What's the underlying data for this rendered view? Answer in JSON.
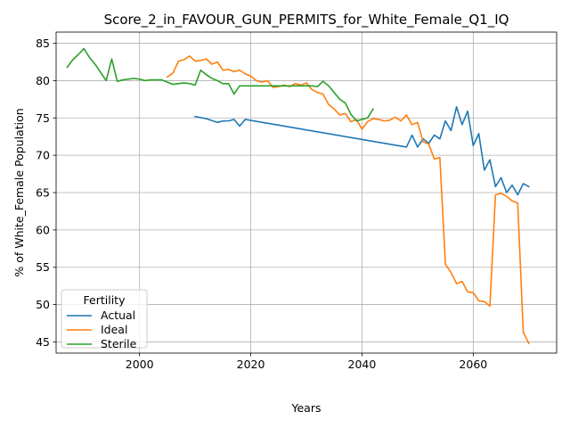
{
  "chart_data": {
    "type": "line",
    "title": "Score_2_in_FAVOUR_GUN_PERMITS_for_White_Female_Q1_IQ",
    "xlabel": "Years",
    "ylabel": "% of White_Female Population",
    "xlim": [
      1985,
      2075
    ],
    "ylim": [
      43.5,
      86.5
    ],
    "xticks": [
      2000,
      2020,
      2040,
      2060
    ],
    "yticks": [
      45,
      50,
      55,
      60,
      65,
      70,
      75,
      80,
      85
    ],
    "grid": true,
    "legend": {
      "title": "Fertility",
      "placement": "lower-left"
    },
    "series": [
      {
        "name": "Actual",
        "color": "#1f77b4",
        "points": [
          [
            2010,
            75.2
          ],
          [
            2012,
            74.9
          ],
          [
            2014,
            74.4
          ],
          [
            2015,
            74.6
          ],
          [
            2016,
            74.6
          ],
          [
            2017,
            74.8
          ],
          [
            2018,
            73.9
          ],
          [
            2019,
            74.8
          ],
          [
            2048,
            71.1
          ],
          [
            2049,
            72.7
          ],
          [
            2050,
            71.1
          ],
          [
            2051,
            72.2
          ],
          [
            2052,
            71.6
          ],
          [
            2053,
            72.7
          ],
          [
            2054,
            72.2
          ],
          [
            2055,
            74.6
          ],
          [
            2056,
            73.3
          ],
          [
            2057,
            76.5
          ],
          [
            2058,
            74.1
          ],
          [
            2059,
            75.9
          ],
          [
            2060,
            71.3
          ],
          [
            2061,
            72.9
          ],
          [
            2062,
            68.0
          ],
          [
            2063,
            69.4
          ],
          [
            2064,
            65.8
          ],
          [
            2065,
            67.0
          ],
          [
            2066,
            65.0
          ],
          [
            2067,
            66.0
          ],
          [
            2068,
            64.7
          ],
          [
            2069,
            66.2
          ],
          [
            2070,
            65.8
          ]
        ]
      },
      {
        "name": "Ideal",
        "color": "#ff7f0e",
        "points": [
          [
            2005,
            80.5
          ],
          [
            2006,
            81.0
          ],
          [
            2007,
            82.6
          ],
          [
            2008,
            82.8
          ],
          [
            2009,
            83.3
          ],
          [
            2010,
            82.6
          ],
          [
            2011,
            82.7
          ],
          [
            2012,
            82.9
          ],
          [
            2013,
            82.2
          ],
          [
            2014,
            82.5
          ],
          [
            2015,
            81.4
          ],
          [
            2016,
            81.5
          ],
          [
            2017,
            81.2
          ],
          [
            2018,
            81.4
          ],
          [
            2019,
            80.9
          ],
          [
            2020,
            80.6
          ],
          [
            2021,
            80.0
          ],
          [
            2022,
            79.8
          ],
          [
            2023,
            80.0
          ],
          [
            2024,
            79.1
          ],
          [
            2025,
            79.2
          ],
          [
            2026,
            79.4
          ],
          [
            2027,
            79.2
          ],
          [
            2028,
            79.6
          ],
          [
            2029,
            79.4
          ],
          [
            2030,
            79.7
          ],
          [
            2031,
            78.8
          ],
          [
            2032,
            78.4
          ],
          [
            2033,
            78.2
          ],
          [
            2034,
            76.8
          ],
          [
            2035,
            76.2
          ],
          [
            2036,
            75.4
          ],
          [
            2037,
            75.6
          ],
          [
            2038,
            74.5
          ],
          [
            2039,
            74.8
          ],
          [
            2040,
            73.5
          ],
          [
            2041,
            74.5
          ],
          [
            2042,
            74.9
          ],
          [
            2043,
            74.8
          ],
          [
            2044,
            74.6
          ],
          [
            2045,
            74.7
          ],
          [
            2046,
            75.1
          ],
          [
            2047,
            74.6
          ],
          [
            2048,
            75.4
          ],
          [
            2049,
            74.1
          ],
          [
            2050,
            74.4
          ],
          [
            2051,
            71.8
          ],
          [
            2052,
            71.5
          ],
          [
            2053,
            69.5
          ],
          [
            2054,
            69.7
          ],
          [
            2055,
            55.4
          ],
          [
            2056,
            54.3
          ],
          [
            2057,
            52.8
          ],
          [
            2058,
            53.1
          ],
          [
            2059,
            51.7
          ],
          [
            2060,
            51.6
          ],
          [
            2061,
            50.5
          ],
          [
            2062,
            50.4
          ],
          [
            2063,
            49.8
          ],
          [
            2064,
            64.7
          ],
          [
            2065,
            64.9
          ],
          [
            2066,
            64.5
          ],
          [
            2067,
            63.9
          ],
          [
            2068,
            63.6
          ],
          [
            2069,
            46.3
          ],
          [
            2070,
            44.8
          ]
        ]
      },
      {
        "name": "Sterile",
        "color": "#2ca02c",
        "points": [
          [
            1987,
            81.8
          ],
          [
            1988,
            82.8
          ],
          [
            1989,
            83.5
          ],
          [
            1990,
            84.3
          ],
          [
            1991,
            83.1
          ],
          [
            1992,
            82.2
          ],
          [
            1993,
            81.1
          ],
          [
            1994,
            80.0
          ],
          [
            1995,
            82.9
          ],
          [
            1996,
            79.9
          ],
          [
            1997,
            80.1
          ],
          [
            1998,
            80.2
          ],
          [
            1999,
            80.3
          ],
          [
            2000,
            80.2
          ],
          [
            2001,
            80.0
          ],
          [
            2002,
            80.1
          ],
          [
            2003,
            80.1
          ],
          [
            2004,
            80.1
          ],
          [
            2005,
            79.8
          ],
          [
            2006,
            79.5
          ],
          [
            2007,
            79.6
          ],
          [
            2008,
            79.7
          ],
          [
            2009,
            79.6
          ],
          [
            2010,
            79.4
          ],
          [
            2011,
            81.4
          ],
          [
            2012,
            80.8
          ],
          [
            2013,
            80.3
          ],
          [
            2014,
            80.0
          ],
          [
            2015,
            79.6
          ],
          [
            2016,
            79.6
          ],
          [
            2017,
            78.2
          ],
          [
            2018,
            79.3
          ],
          [
            2019,
            79.3
          ],
          [
            2020,
            79.3
          ],
          [
            2021,
            79.3
          ],
          [
            2022,
            79.3
          ],
          [
            2023,
            79.3
          ],
          [
            2024,
            79.3
          ],
          [
            2025,
            79.3
          ],
          [
            2026,
            79.3
          ],
          [
            2027,
            79.3
          ],
          [
            2028,
            79.3
          ],
          [
            2029,
            79.3
          ],
          [
            2030,
            79.3
          ],
          [
            2031,
            79.3
          ],
          [
            2032,
            79.2
          ],
          [
            2033,
            79.9
          ],
          [
            2034,
            79.3
          ],
          [
            2035,
            78.4
          ],
          [
            2036,
            77.5
          ],
          [
            2037,
            77.0
          ],
          [
            2038,
            75.5
          ],
          [
            2039,
            74.6
          ],
          [
            2040,
            74.8
          ],
          [
            2041,
            75.0
          ],
          [
            2042,
            76.2
          ]
        ]
      }
    ]
  }
}
